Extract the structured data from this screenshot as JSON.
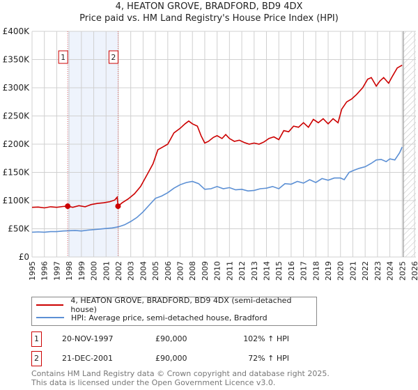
{
  "chart_data": {
    "type": "line",
    "title": "4, HEATON GROVE, BRADFORD, BD9 4DX",
    "subtitle": "Price paid vs. HM Land Registry's House Price Index (HPI)",
    "xlim": [
      1995,
      2026
    ],
    "ylim": [
      0,
      400000
    ],
    "x_ticks": [
      "1995",
      "1996",
      "1997",
      "1998",
      "1999",
      "2000",
      "2001",
      "2002",
      "2003",
      "2004",
      "2005",
      "2006",
      "2007",
      "2008",
      "2009",
      "2010",
      "2011",
      "2012",
      "2013",
      "2014",
      "2015",
      "2016",
      "2017",
      "2018",
      "2019",
      "2020",
      "2021",
      "2022",
      "2023",
      "2024",
      "2025",
      "2026"
    ],
    "y_ticks": [
      {
        "v": 0,
        "label": "£0"
      },
      {
        "v": 50000,
        "label": "£50K"
      },
      {
        "v": 100000,
        "label": "£100K"
      },
      {
        "v": 150000,
        "label": "£150K"
      },
      {
        "v": 200000,
        "label": "£200K"
      },
      {
        "v": 250000,
        "label": "£250K"
      },
      {
        "v": 300000,
        "label": "£300K"
      },
      {
        "v": 350000,
        "label": "£350K"
      },
      {
        "v": 400000,
        "label": "£400K"
      }
    ],
    "grid": true,
    "shaded_range": [
      1997.89,
      2001.97
    ],
    "forecast_hatch_from": 2025.1,
    "series": [
      {
        "name": "4, HEATON GROVE, BRADFORD, BD9 4DX (semi-detached house)",
        "color": "#cc0000",
        "x": [
          1995,
          1995.5,
          1996,
          1996.5,
          1997,
          1997.5,
          1997.89,
          1998.3,
          1998.8,
          1999.3,
          1999.8,
          2000.3,
          2000.8,
          2001.3,
          2001.7,
          2001.9,
          2001.97,
          2002.3,
          2002.8,
          2003.3,
          2003.8,
          2004.3,
          2004.8,
          2005.2,
          2005.6,
          2006.0,
          2006.5,
          2007.0,
          2007.4,
          2007.7,
          2008.0,
          2008.4,
          2008.7,
          2009.0,
          2009.3,
          2009.7,
          2010.0,
          2010.4,
          2010.7,
          2011.0,
          2011.4,
          2011.8,
          2012.2,
          2012.6,
          2013.0,
          2013.4,
          2013.8,
          2014.2,
          2014.6,
          2015.0,
          2015.4,
          2015.8,
          2016.2,
          2016.6,
          2017.0,
          2017.4,
          2017.8,
          2018.2,
          2018.6,
          2019.0,
          2019.4,
          2019.8,
          2020.1,
          2020.5,
          2020.9,
          2021.3,
          2021.8,
          2022.2,
          2022.5,
          2022.9,
          2023.2,
          2023.5,
          2023.9,
          2024.2,
          2024.6,
          2025.0
        ],
        "y": [
          88000,
          88500,
          87000,
          89000,
          88000,
          89500,
          90000,
          88000,
          91000,
          89000,
          93000,
          95000,
          96000,
          98000,
          101000,
          106000,
          90000,
          96000,
          103000,
          112000,
          125000,
          145000,
          165000,
          190000,
          195000,
          200000,
          220000,
          228000,
          236000,
          241000,
          236000,
          232000,
          215000,
          202000,
          205000,
          212000,
          215000,
          210000,
          217000,
          210000,
          205000,
          207000,
          203000,
          200000,
          202000,
          200000,
          204000,
          210000,
          213000,
          208000,
          224000,
          222000,
          232000,
          230000,
          238000,
          230000,
          244000,
          238000,
          245000,
          236000,
          245000,
          238000,
          262000,
          275000,
          280000,
          288000,
          300000,
          315000,
          318000,
          303000,
          312000,
          318000,
          308000,
          320000,
          335000,
          340000
        ]
      },
      {
        "name": "HPI: Average price, semi-detached house, Bradford",
        "color": "#5b8fd4",
        "x": [
          1995,
          1995.5,
          1996,
          1996.5,
          1997,
          1997.5,
          1998,
          1998.5,
          1999,
          1999.5,
          2000,
          2000.5,
          2001,
          2001.5,
          2002,
          2002.5,
          2003,
          2003.5,
          2004,
          2004.5,
          2005,
          2005.5,
          2006,
          2006.5,
          2007,
          2007.5,
          2008,
          2008.5,
          2009,
          2009.5,
          2010,
          2010.5,
          2011,
          2011.5,
          2012,
          2012.5,
          2013,
          2013.5,
          2014,
          2014.5,
          2015,
          2015.5,
          2016,
          2016.5,
          2017,
          2017.5,
          2018,
          2018.5,
          2019,
          2019.5,
          2020,
          2020.3,
          2020.7,
          2021,
          2021.5,
          2022,
          2022.5,
          2022.9,
          2023.3,
          2023.7,
          2024,
          2024.4,
          2024.8,
          2025
        ],
        "y": [
          44000,
          44500,
          44000,
          45000,
          45000,
          46000,
          46500,
          47000,
          46000,
          47500,
          48500,
          49500,
          50500,
          51500,
          53500,
          57000,
          63000,
          70000,
          80000,
          92000,
          104000,
          108000,
          114000,
          122000,
          128000,
          132000,
          134000,
          130000,
          120000,
          121000,
          125000,
          121000,
          123000,
          119000,
          120000,
          117000,
          118000,
          121000,
          122000,
          125000,
          121000,
          130000,
          129000,
          134000,
          131000,
          137000,
          132000,
          139000,
          136000,
          140000,
          140000,
          137000,
          150000,
          153000,
          157000,
          160000,
          166000,
          172000,
          173000,
          169000,
          174000,
          172000,
          185000,
          195000
        ]
      }
    ],
    "sales": [
      {
        "x": 1997.89,
        "y": 90000,
        "label": "1"
      },
      {
        "x": 2001.97,
        "y": 90000,
        "label": "2"
      }
    ]
  },
  "legend": {
    "property": "4, HEATON GROVE, BRADFORD, BD9 4DX (semi-detached house)",
    "hpi": "HPI: Average price, semi-detached house, Bradford"
  },
  "transactions": [
    {
      "num": "1",
      "date": "20-NOV-1997",
      "price": "£90,000",
      "hpi": "102% ↑ HPI"
    },
    {
      "num": "2",
      "date": "21-DEC-2001",
      "price": "£90,000",
      "hpi": "72% ↑ HPI"
    }
  ],
  "footer": {
    "line1": "Contains HM Land Registry data © Crown copyright and database right 2025.",
    "line2": "This data is licensed under the Open Government Licence v3.0."
  }
}
